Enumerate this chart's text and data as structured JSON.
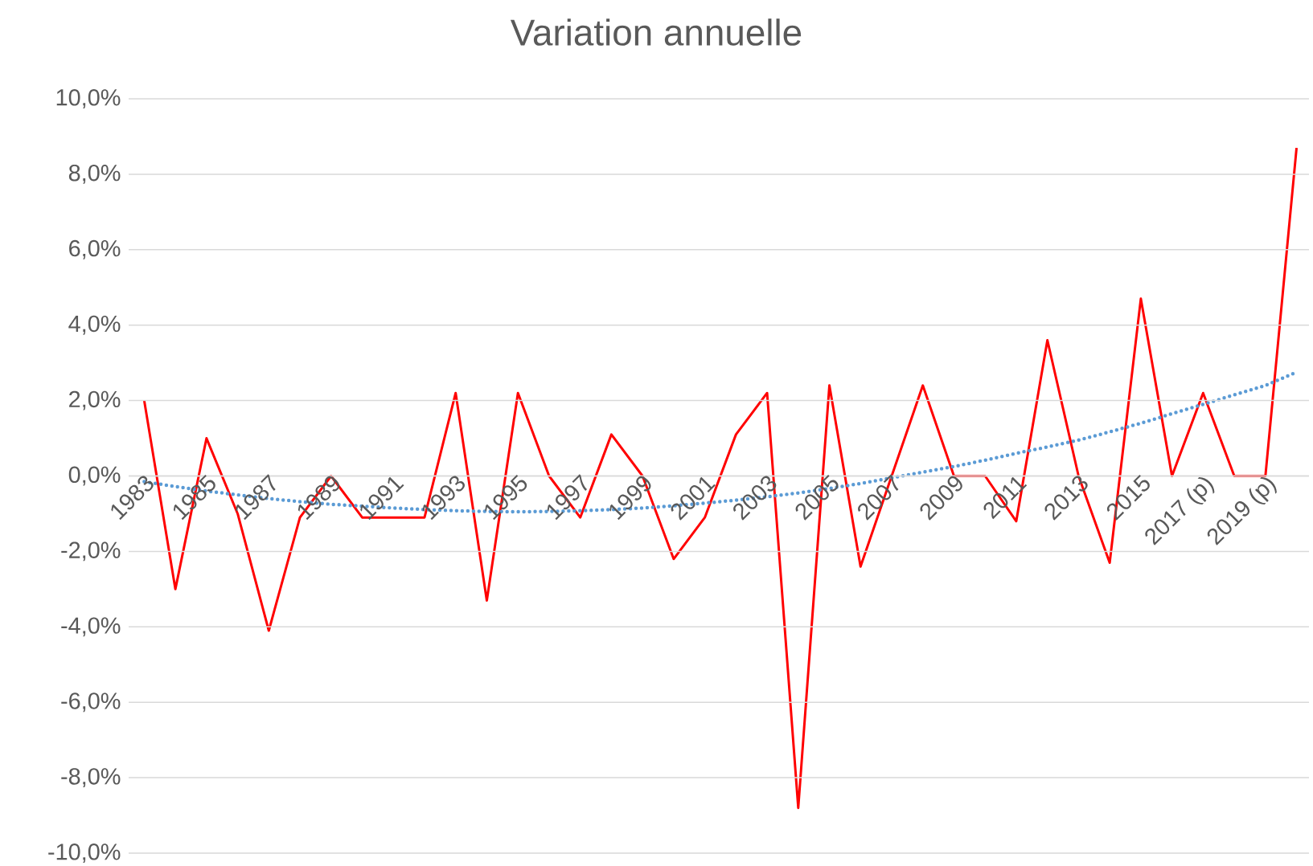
{
  "chart_data": {
    "type": "line",
    "title": "Variation annuelle",
    "categories": [
      "1983",
      null,
      "1985",
      null,
      "1987",
      null,
      "1989",
      null,
      "1991",
      null,
      "1993",
      null,
      "1995",
      null,
      "1997",
      null,
      "1999",
      null,
      "2001",
      null,
      "2003",
      null,
      "2005",
      null,
      "2007",
      null,
      "2009",
      null,
      "2011",
      null,
      "2013",
      null,
      "2015",
      null,
      "2017 (p)",
      null,
      "2019 (p)",
      null
    ],
    "series": [
      {
        "color": "#ff0000",
        "line_style": "solid",
        "values": [
          2.0,
          -3.0,
          1.0,
          -1.0,
          -4.1,
          -1.1,
          0.0,
          -1.1,
          -1.1,
          -1.1,
          2.2,
          -3.3,
          2.2,
          0.0,
          -1.1,
          1.1,
          0.0,
          -2.2,
          -1.1,
          1.1,
          2.2,
          -8.8,
          2.4,
          -2.4,
          0.0,
          2.4,
          0.0,
          0.0,
          -1.2,
          3.6,
          0.0,
          -2.3,
          4.7,
          0.0,
          2.2,
          0.0,
          0.0,
          8.7
        ]
      },
      {
        "color": "#5b9bd5",
        "line_style": "dotted",
        "values": [
          -0.15,
          -0.28,
          -0.4,
          -0.5,
          -0.6,
          -0.68,
          -0.75,
          -0.8,
          -0.85,
          -0.89,
          -0.92,
          -0.94,
          -0.95,
          -0.94,
          -0.92,
          -0.89,
          -0.85,
          -0.79,
          -0.72,
          -0.64,
          -0.55,
          -0.45,
          -0.33,
          -0.2,
          -0.05,
          0.1,
          0.25,
          0.42,
          0.6,
          0.77,
          0.95,
          1.17,
          1.4,
          1.65,
          1.9,
          2.15,
          2.4,
          2.75
        ]
      }
    ],
    "ylim": [
      -10,
      10
    ],
    "yticks": [
      {
        "value": -10,
        "label": "-10,0%"
      },
      {
        "value": -8,
        "label": "-8,0%"
      },
      {
        "value": -6,
        "label": "-6,0%"
      },
      {
        "value": -4,
        "label": "-4,0%"
      },
      {
        "value": -2,
        "label": "-2,0%"
      },
      {
        "value": 0,
        "label": "0,0%"
      },
      {
        "value": 2,
        "label": "2,0%"
      },
      {
        "value": 4,
        "label": "4,0%"
      },
      {
        "value": 6,
        "label": "6,0%"
      },
      {
        "value": 8,
        "label": "8,0%"
      },
      {
        "value": 10,
        "label": "10,0%"
      }
    ],
    "grid": "y"
  }
}
